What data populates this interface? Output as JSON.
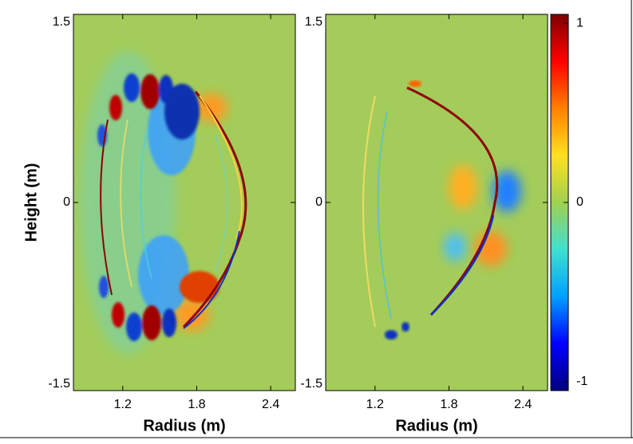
{
  "chart_data": [
    {
      "type": "heatmap",
      "xlabel": "Radius (m)",
      "ylabel": "Height (m)",
      "xlim": [
        0.8,
        2.6
      ],
      "ylim": [
        -1.5,
        1.5
      ],
      "xticks": [
        1.2,
        1.8,
        2.4
      ],
      "yticks": [
        -1.5,
        0,
        1.5
      ]
    },
    {
      "type": "heatmap",
      "xlabel": "Radius (m)",
      "xlim": [
        0.8,
        2.6
      ],
      "ylim": [
        -1.5,
        1.5
      ],
      "xticks": [
        1.2,
        1.8,
        2.4
      ],
      "yticks": [
        -1.5,
        0,
        1.5
      ]
    }
  ],
  "colorbar": {
    "clim": [
      -1.05,
      1.05
    ],
    "ticks": [
      -1,
      0,
      1
    ],
    "colors": [
      "#00007f",
      "#0000ff",
      "#00a0ff",
      "#40e0d0",
      "#a0d050",
      "#ffe020",
      "#ff8000",
      "#ff0000",
      "#7f0000"
    ]
  }
}
